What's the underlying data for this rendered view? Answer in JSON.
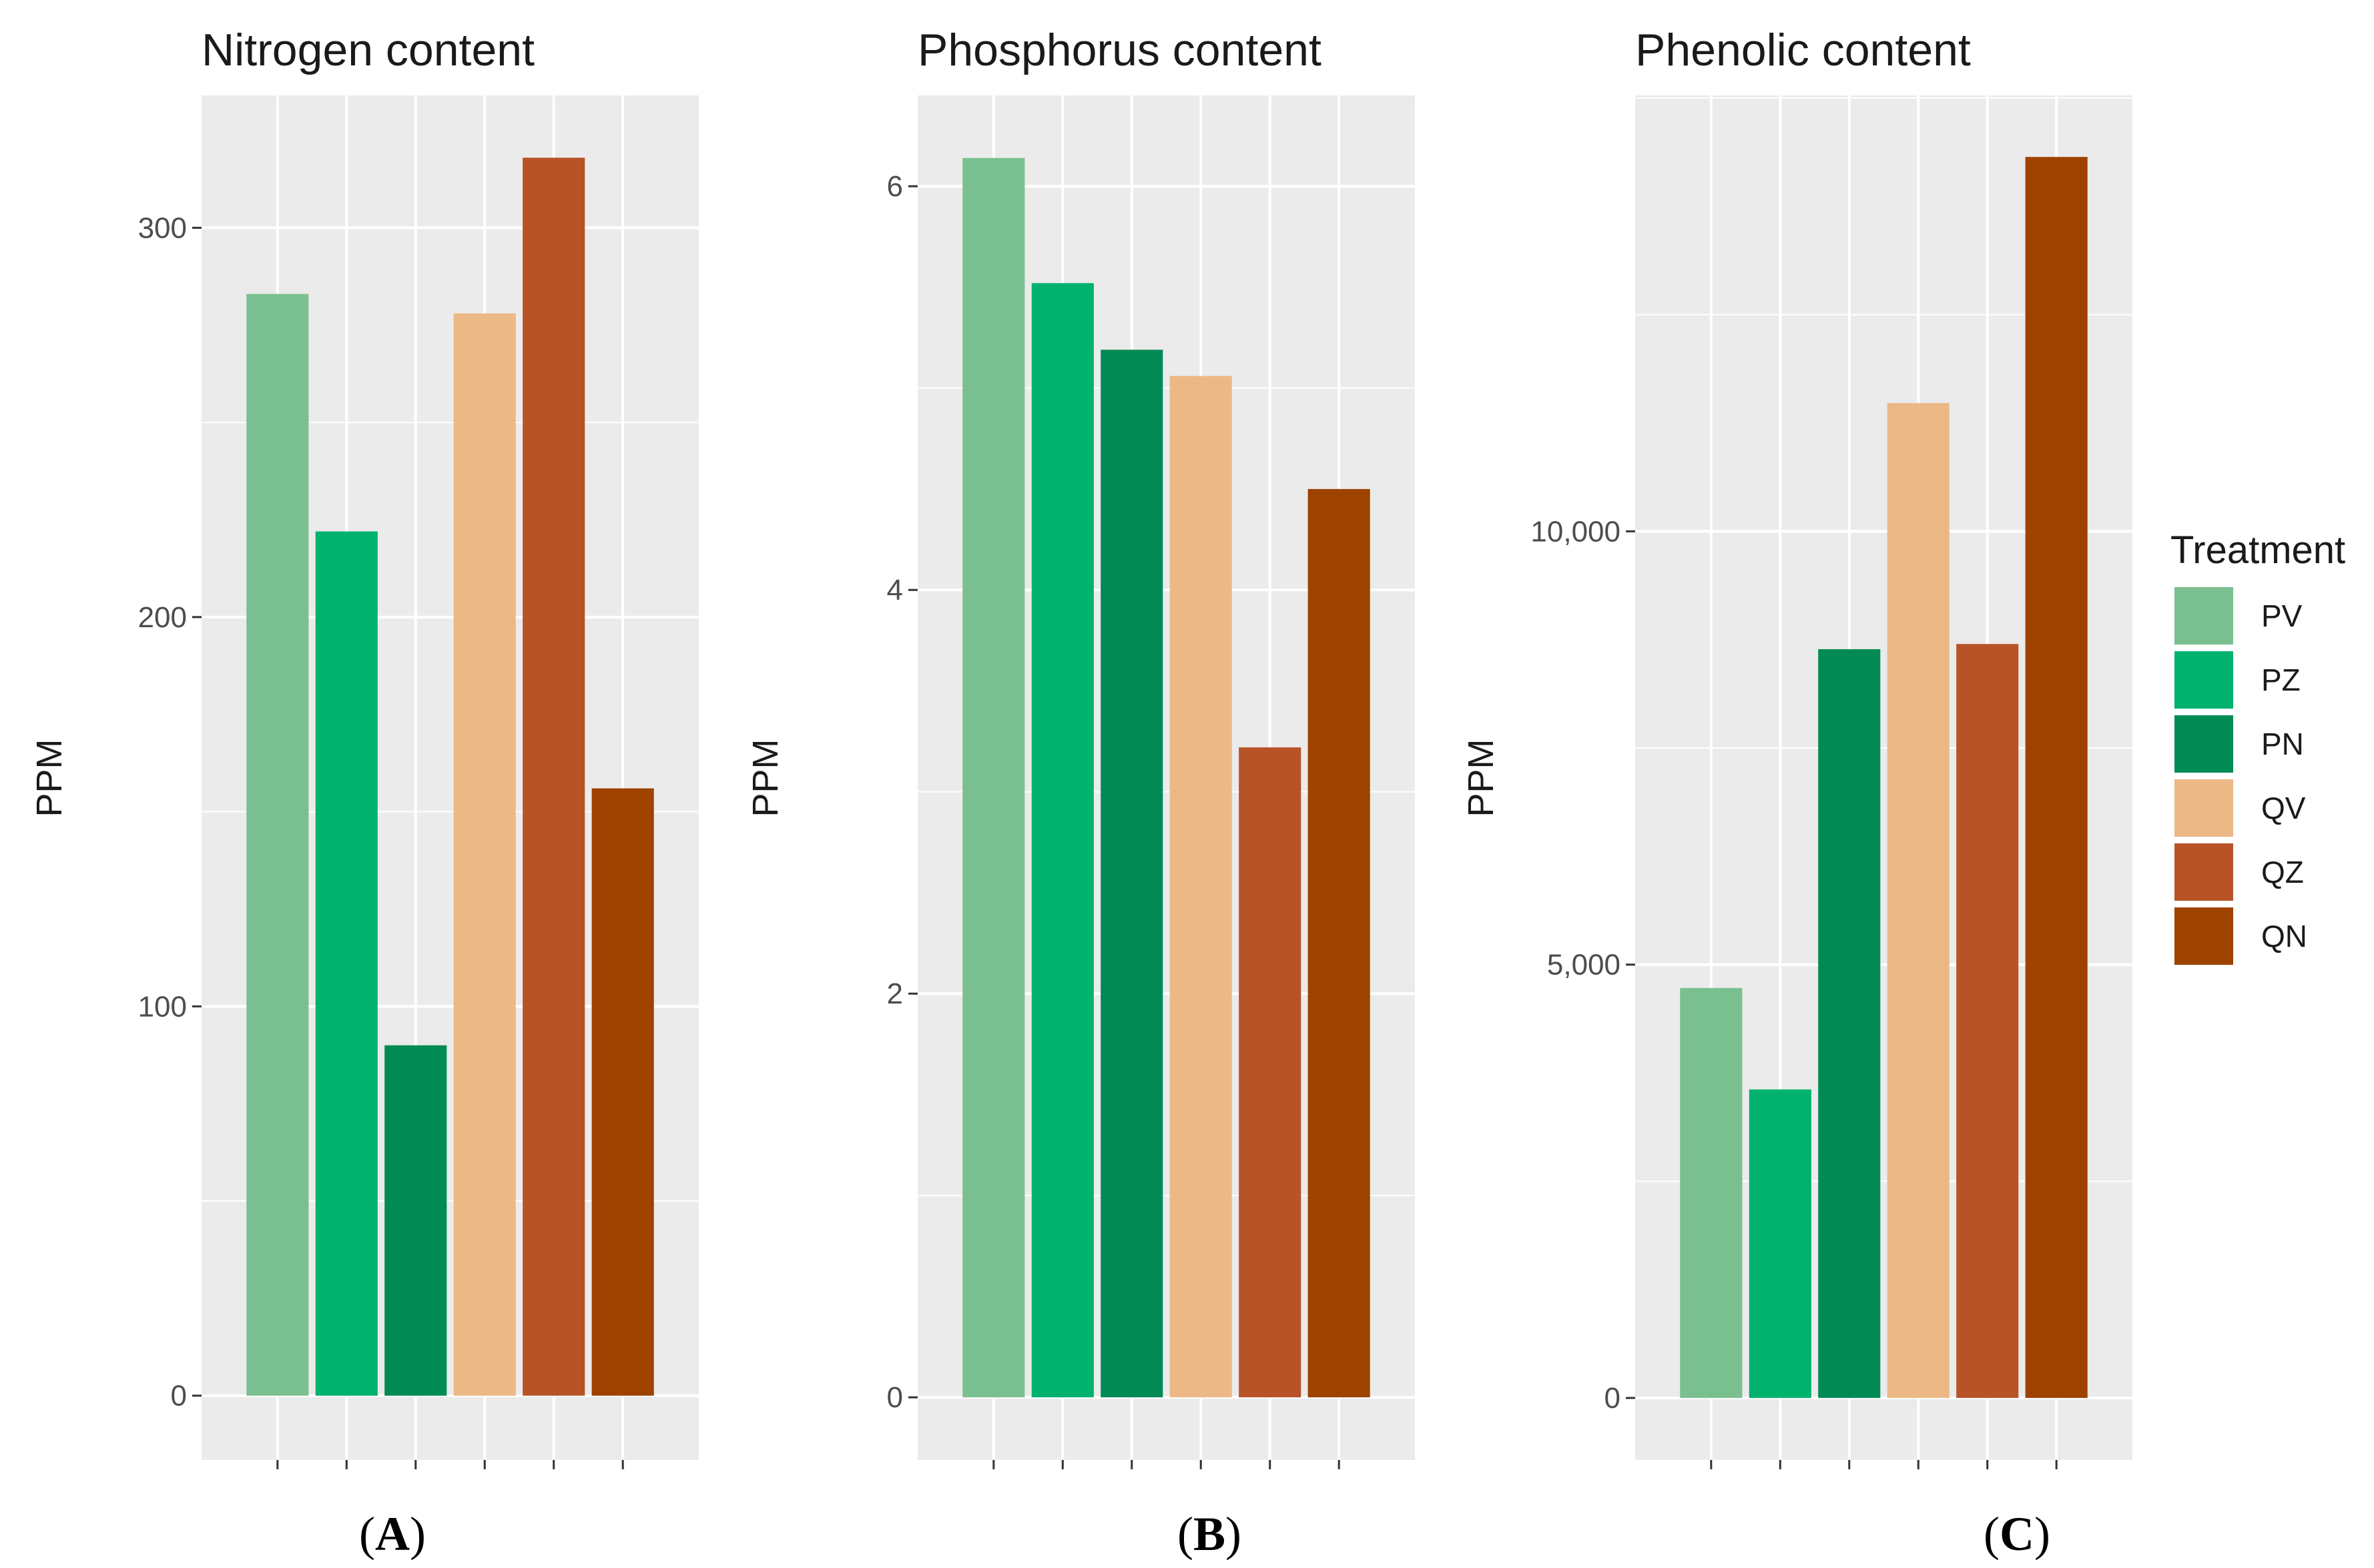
{
  "chart_data": [
    {
      "type": "bar",
      "title": "Nitrogen content",
      "xlabel": "",
      "ylabel": "PPM",
      "panel_label": "A",
      "categories": [
        "PV",
        "PZ",
        "PN",
        "QV",
        "QZ",
        "QN"
      ],
      "values": [
        283,
        222,
        90,
        278,
        318,
        156
      ],
      "ylim": [
        -16.5,
        334
      ],
      "yticks": [
        0,
        100,
        200,
        300
      ],
      "ytick_labels": [
        "0",
        "100",
        "200",
        "300"
      ],
      "grid": true
    },
    {
      "type": "bar",
      "title": "Phosphorus content",
      "xlabel": "",
      "ylabel": "PPM",
      "panel_label": "B",
      "categories": [
        "PV",
        "PZ",
        "PN",
        "QV",
        "QZ",
        "QN"
      ],
      "values": [
        6.14,
        5.52,
        5.19,
        5.06,
        3.22,
        4.5
      ],
      "ylim": [
        -0.31,
        6.45
      ],
      "yticks": [
        0,
        2,
        4,
        6
      ],
      "ytick_labels": [
        "0",
        "2",
        "4",
        "6"
      ],
      "grid": true
    },
    {
      "type": "bar",
      "title": "Phenolic content",
      "xlabel": "",
      "ylabel": "PPM",
      "panel_label": "C",
      "categories": [
        "PV",
        "PZ",
        "PN",
        "QV",
        "QZ",
        "QN"
      ],
      "values": [
        4730,
        3560,
        8640,
        11480,
        8700,
        14320
      ],
      "ylim": [
        -715,
        15030
      ],
      "yticks": [
        0,
        5000,
        10000
      ],
      "ytick_labels": [
        "0",
        "5,000",
        "10,000"
      ],
      "grid": true
    }
  ],
  "legend": {
    "title": "Treatment",
    "position": "right",
    "items": [
      {
        "label": "PV",
        "color": "#7ABF8F"
      },
      {
        "label": "PZ",
        "color": "#00B26E"
      },
      {
        "label": "PN",
        "color": "#028A55"
      },
      {
        "label": "QV",
        "color": "#ECB886"
      },
      {
        "label": "QZ",
        "color": "#B75327"
      },
      {
        "label": "QN",
        "color": "#9E4200"
      }
    ]
  },
  "colors": {
    "panel_background": "#EBEBEB",
    "grid": "#FFFFFF",
    "tick_text": "#4D4D4D"
  }
}
